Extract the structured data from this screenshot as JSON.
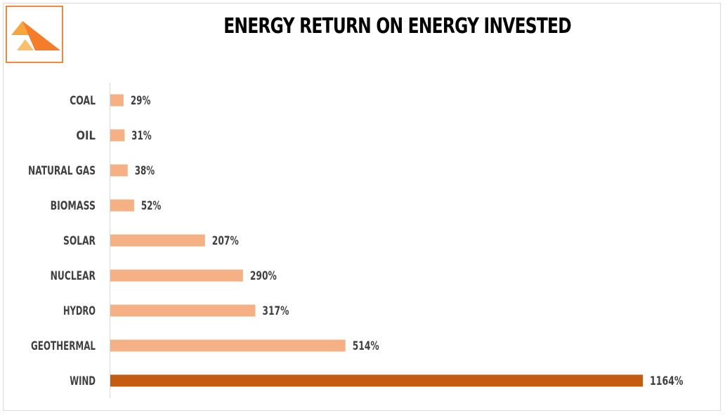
{
  "chart_data": {
    "type": "bar",
    "orientation": "horizontal",
    "title": "ENERGY RETURN ON ENERGY INVESTED",
    "categories": [
      "COAL",
      "OIL",
      "NATURAL GAS",
      "BIOMASS",
      "SOLAR",
      "NUCLEAR",
      "HYDRO",
      "GEOTHERMAL",
      "WIND"
    ],
    "values": [
      29,
      31,
      38,
      52,
      207,
      290,
      317,
      514,
      1164
    ],
    "value_labels": [
      "29%",
      "31%",
      "38%",
      "52%",
      "207%",
      "290%",
      "317%",
      "514%",
      "1164%"
    ],
    "unit": "%",
    "xlim": [
      0,
      1164
    ],
    "grid": false,
    "legend": "none",
    "colors": {
      "default_bar": "#f5b184",
      "highlight_bar": "#c55a11",
      "highlight_category": "WIND",
      "axis": "#d9d9d9"
    }
  },
  "logo": {
    "icon": "triangle-logo-icon",
    "colors": [
      "#f8a53d",
      "#f37d29",
      "#fbbf6a"
    ]
  }
}
